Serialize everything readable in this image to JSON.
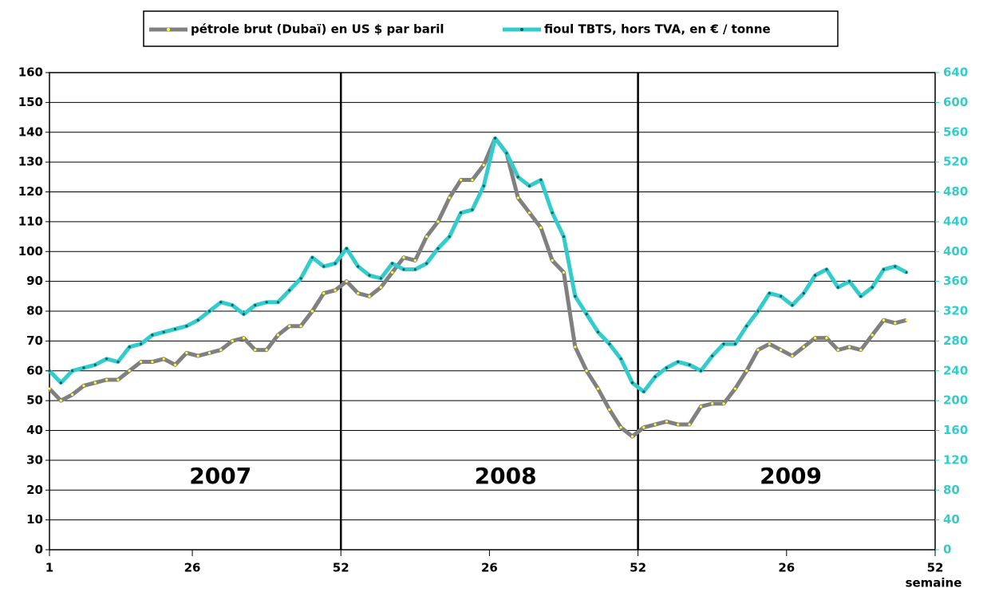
{
  "chart_data": {
    "type": "line",
    "xlabel": "semaine",
    "annotations": [
      "2007",
      "2008",
      "2009"
    ],
    "xlim": [
      1,
      156
    ],
    "xticks": [
      1,
      26,
      52,
      {
        "value": 78,
        "label": "26"
      },
      {
        "value": 104,
        "label": "52"
      },
      {
        "value": 130,
        "label": "26"
      },
      {
        "value": 156,
        "label": "52"
      }
    ],
    "ylim": [
      0,
      160
    ],
    "yticks": [
      0,
      10,
      20,
      30,
      40,
      50,
      60,
      70,
      80,
      90,
      100,
      110,
      120,
      130,
      140,
      150,
      160
    ],
    "y2lim": [
      0,
      640
    ],
    "y2ticks": [
      0,
      40,
      80,
      120,
      160,
      200,
      240,
      280,
      320,
      360,
      400,
      440,
      480,
      520,
      560,
      600,
      640
    ],
    "grid": true,
    "legend": "top",
    "x": [
      1,
      3,
      5,
      7,
      9,
      11,
      13,
      15,
      17,
      19,
      21,
      23,
      25,
      27,
      29,
      31,
      33,
      35,
      37,
      39,
      41,
      43,
      45,
      47,
      49,
      51,
      53,
      55,
      57,
      59,
      61,
      63,
      65,
      67,
      69,
      71,
      73,
      75,
      77,
      79,
      81,
      83,
      85,
      87,
      89,
      91,
      93,
      95,
      97,
      99,
      101,
      103,
      105,
      107,
      109,
      111,
      113,
      115,
      117,
      119,
      121,
      123,
      125,
      127,
      129,
      131,
      133,
      135,
      137,
      139,
      141,
      143,
      145,
      147,
      149,
      151
    ],
    "series": [
      {
        "name": "pétrole brut (Dubaï) en US $ par baril",
        "color": "#808080",
        "marker_color": "#ffff33",
        "values": [
          54,
          50,
          52,
          55,
          56,
          57,
          57,
          60,
          63,
          63,
          64,
          62,
          66,
          65,
          66,
          67,
          70,
          71,
          67,
          67,
          72,
          75,
          75,
          80,
          86,
          87,
          90,
          86,
          85,
          88,
          93,
          98,
          97,
          105,
          110,
          118,
          124,
          124,
          129,
          138,
          133,
          118,
          113,
          108,
          97,
          93,
          68,
          60,
          54,
          47,
          41,
          38,
          41,
          42,
          43,
          42,
          42,
          48,
          49,
          49,
          54,
          60,
          67,
          69,
          67,
          65,
          68,
          71,
          71,
          67,
          68,
          67,
          72,
          77,
          76,
          77
        ]
      },
      {
        "name": "fioul TBTS, hors TVA, en € / tonne",
        "color": "#33cccc",
        "marker_color": "#006060",
        "axis": "y2",
        "values": [
          240,
          224,
          240,
          244,
          248,
          256,
          252,
          272,
          276,
          288,
          292,
          296,
          300,
          308,
          320,
          332,
          328,
          316,
          328,
          332,
          332,
          348,
          364,
          392,
          380,
          384,
          404,
          380,
          368,
          364,
          384,
          376,
          376,
          384,
          404,
          420,
          452,
          456,
          488,
          552,
          532,
          500,
          488,
          496,
          452,
          420,
          340,
          316,
          292,
          276,
          256,
          224,
          212,
          232,
          244,
          252,
          248,
          240,
          260,
          276,
          276,
          300,
          320,
          344,
          340,
          328,
          344,
          368,
          376,
          352,
          360,
          340,
          352,
          376,
          380,
          372
        ]
      }
    ]
  }
}
